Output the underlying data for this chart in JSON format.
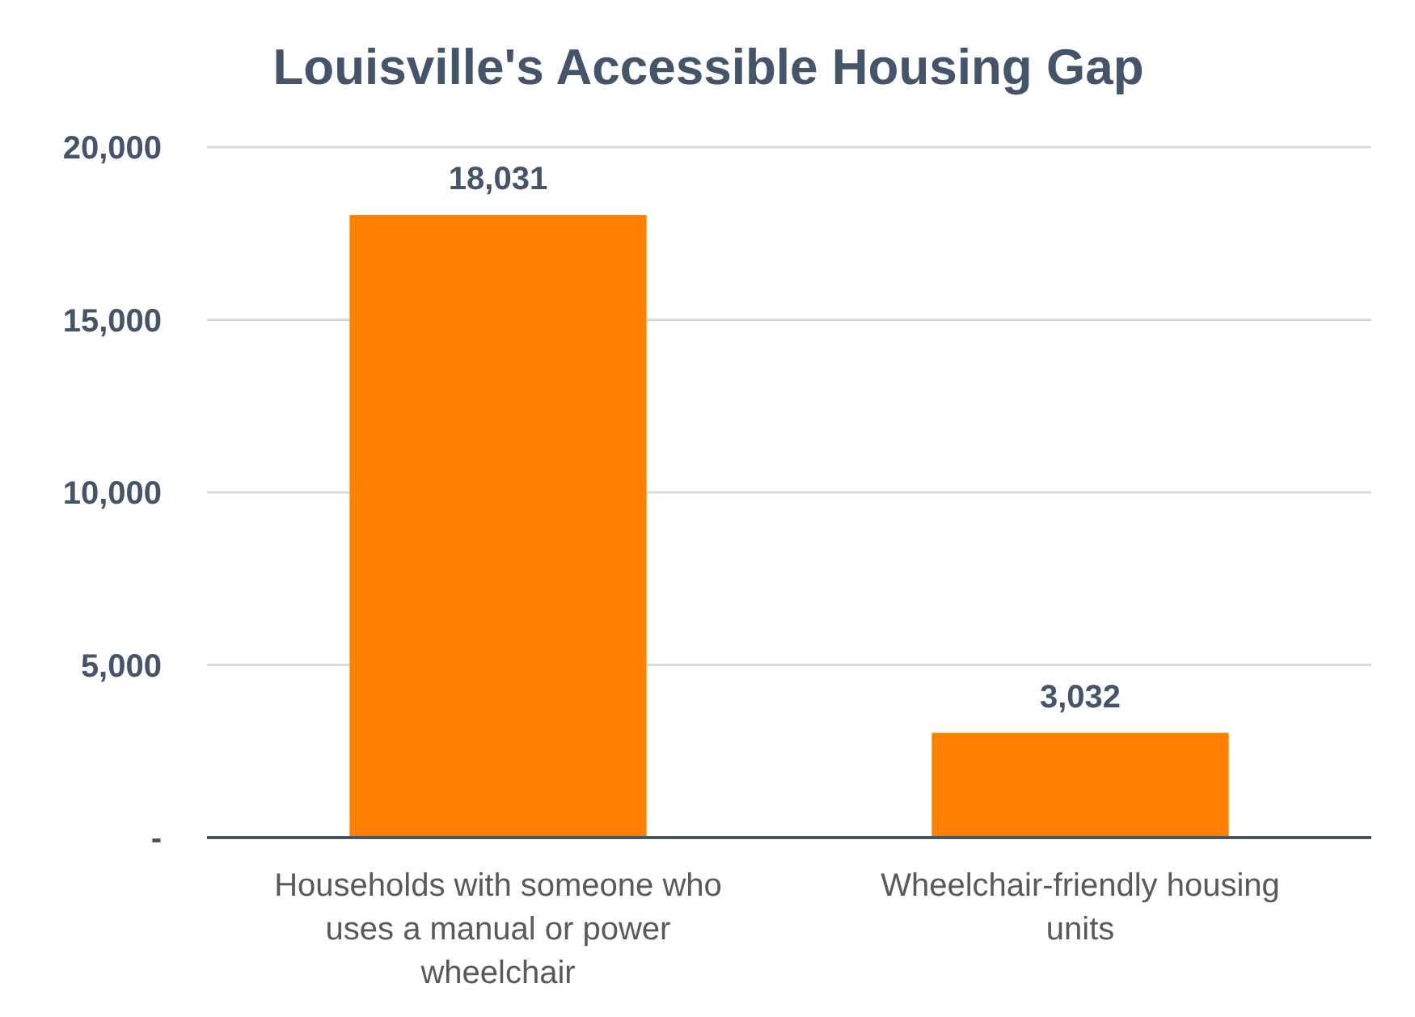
{
  "chart_data": {
    "type": "bar",
    "title": "Louisville's Accessible Housing Gap",
    "categories": [
      "Households with someone who uses a manual or power wheelchair",
      "Wheelchair-friendly housing units"
    ],
    "values": [
      18031,
      3032
    ],
    "color": "#ff8000",
    "ylim": [
      0,
      20000
    ],
    "yticks": [
      {
        "value": 0,
        "label": "-"
      },
      {
        "value": 5000,
        "label": "5,000"
      },
      {
        "value": 10000,
        "label": "10,000"
      },
      {
        "value": 15000,
        "label": "15,000"
      },
      {
        "value": 20000,
        "label": "20,000"
      }
    ],
    "grid": "y",
    "value_labels": [
      "18,031",
      "3,032"
    ]
  }
}
